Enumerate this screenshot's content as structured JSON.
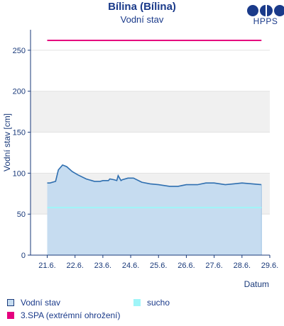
{
  "chart_data": {
    "type": "area",
    "title": "Bílina (Bílina)",
    "subtitle": "Vodní stav",
    "xlabel": "Datum",
    "ylabel": "Vodní stav [cm]",
    "ylim": [
      0,
      275
    ],
    "yticks": [
      0,
      50,
      100,
      150,
      200,
      250
    ],
    "xticks": [
      "21.6.",
      "22.6.",
      "23.6.",
      "24.6.",
      "25.6.",
      "26.6.",
      "27.6.",
      "28.6.",
      "29.6."
    ],
    "x_unit": "day",
    "xlim": [
      21.6,
      29.6
    ],
    "grid_bands": [
      [
        50,
        100
      ],
      [
        150,
        200
      ]
    ],
    "series": [
      {
        "name": "Vodní stav",
        "kind": "area",
        "color": "#2f6fb0",
        "fill": "#c6dcf0",
        "x": [
          21.6,
          21.7,
          21.9,
          22.0,
          22.15,
          22.3,
          22.5,
          22.7,
          23.0,
          23.3,
          23.5,
          23.6,
          23.8,
          23.85,
          24.0,
          24.1,
          24.15,
          24.25,
          24.3,
          24.5,
          24.7,
          25.0,
          25.3,
          25.6,
          26.0,
          26.3,
          26.6,
          27.0,
          27.3,
          27.6,
          28.0,
          28.3,
          28.6,
          29.3
        ],
        "y": [
          88,
          88,
          90,
          104,
          110,
          108,
          102,
          98,
          93,
          90,
          90,
          91,
          91,
          93,
          92,
          91,
          97,
          91,
          92,
          94,
          94,
          89,
          87,
          86,
          84,
          84,
          86,
          86,
          88,
          88,
          86,
          87,
          88,
          86
        ]
      },
      {
        "name": "sucho",
        "kind": "line",
        "color": "#9ff5f8",
        "value": 58
      },
      {
        "name": "3.SPA (extrémní ohrožení)",
        "kind": "line",
        "color": "#e5007e",
        "value": 262
      }
    ],
    "legend": [
      {
        "label": "Vodní stav",
        "kind": "area",
        "fill": "#c6dcf0",
        "border": "#1a3a7a"
      },
      {
        "label": "sucho",
        "kind": "line",
        "fill": "#9ff5f8",
        "border": "#9ff5f8"
      },
      {
        "label": "3.SPA (extrémní ohrožení)",
        "kind": "line",
        "fill": "#e5007e",
        "border": "#e5007e"
      }
    ]
  },
  "logo": {
    "text": "HPPS"
  }
}
